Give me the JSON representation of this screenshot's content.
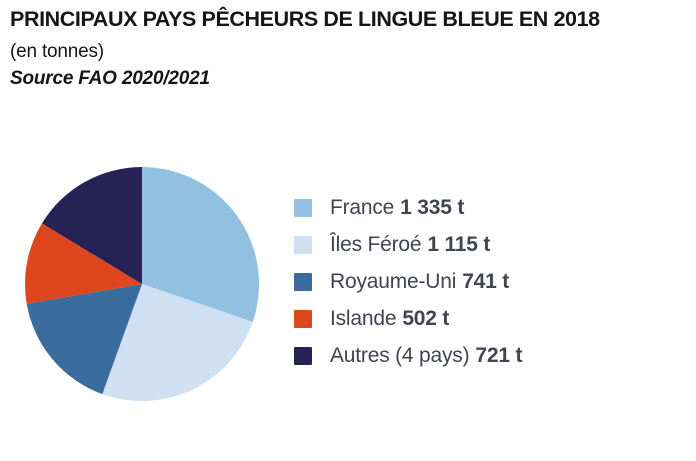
{
  "header": {
    "title": "PRINCIPAUX PAYS PÊCHEURS DE LINGUE BLEUE EN 2018",
    "subtitle": "(en tonnes)",
    "source": "Source FAO 2020/2021"
  },
  "chart_data": {
    "type": "pie",
    "title": "PRINCIPAUX PAYS PÊCHEURS DE LINGUE BLEUE EN 2018",
    "subtitle": "(en tonnes)",
    "source": "Source FAO 2020/2021",
    "unit": "t",
    "total": 4414,
    "start_angle": "top",
    "direction": "clockwise",
    "legend_position": "right",
    "categories": [
      "France",
      "Îles Féroé",
      "Royaume-Uni",
      "Islande",
      "Autres (4 pays)"
    ],
    "values": [
      1335,
      1115,
      741,
      502,
      721
    ],
    "values_display": [
      "1 335 t",
      "1 115 t",
      "741 t",
      "502 t",
      "721 t"
    ],
    "colors": [
      "#92c0e1",
      "#cfe0f2",
      "#3a6d9d",
      "#de471d",
      "#262256"
    ],
    "legend": [
      {
        "name": "France",
        "value": "1 335 t",
        "color": "#92c0e1"
      },
      {
        "name": "Îles Féroé",
        "value": "1 115 t",
        "color": "#cfe0f2"
      },
      {
        "name": "Royaume-Uni",
        "value": "741 t",
        "color": "#3a6d9d"
      },
      {
        "name": "Islande",
        "value": "502 t",
        "color": "#de471d"
      },
      {
        "name": "Autres (4 pays)",
        "value": "721 t",
        "color": "#262256"
      }
    ]
  }
}
